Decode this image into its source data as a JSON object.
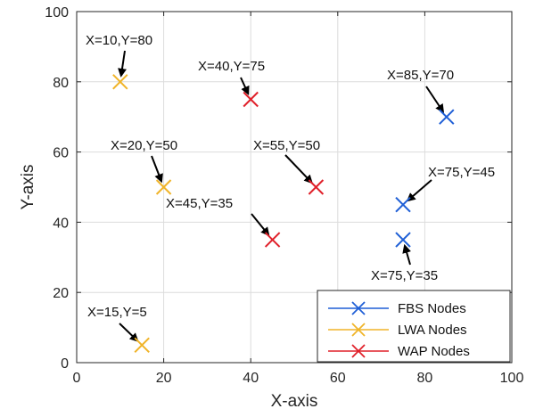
{
  "chart_data": {
    "type": "scatter",
    "title": "",
    "xlabel": "X-axis",
    "ylabel": "Y-axis",
    "xlim": [
      0,
      100
    ],
    "ylim": [
      0,
      100
    ],
    "xticks": [
      "0",
      "20",
      "40",
      "60",
      "80",
      "100"
    ],
    "yticks": [
      "0",
      "20",
      "40",
      "60",
      "80",
      "100"
    ],
    "grid": true,
    "legend_position": "bottom-right",
    "series": [
      {
        "name": "FBS Nodes",
        "color": "#1f5fd6",
        "x": [
          85,
          75,
          75
        ],
        "y": [
          70,
          45,
          35
        ]
      },
      {
        "name": "LWA Nodes",
        "color": "#f0b429",
        "x": [
          10,
          20,
          15
        ],
        "y": [
          80,
          50,
          5
        ]
      },
      {
        "name": "WAP Nodes",
        "color": "#e0202a",
        "x": [
          40,
          55,
          45
        ],
        "y": [
          75,
          50,
          35
        ]
      }
    ],
    "annotations": [
      {
        "text": "X=10,Y=80",
        "x": 10,
        "y": 80
      },
      {
        "text": "X=40,Y=75",
        "x": 40,
        "y": 75
      },
      {
        "text": "X=85,Y=70",
        "x": 85,
        "y": 70
      },
      {
        "text": "X=20,Y=50",
        "x": 20,
        "y": 50
      },
      {
        "text": "X=55,Y=50",
        "x": 55,
        "y": 50
      },
      {
        "text": "X=75,Y=45",
        "x": 75,
        "y": 45
      },
      {
        "text": "X=45,Y=35",
        "x": 45,
        "y": 35
      },
      {
        "text": "X=75,Y=35",
        "x": 75,
        "y": 35
      },
      {
        "text": "X=15,Y=5",
        "x": 15,
        "y": 5
      }
    ]
  }
}
